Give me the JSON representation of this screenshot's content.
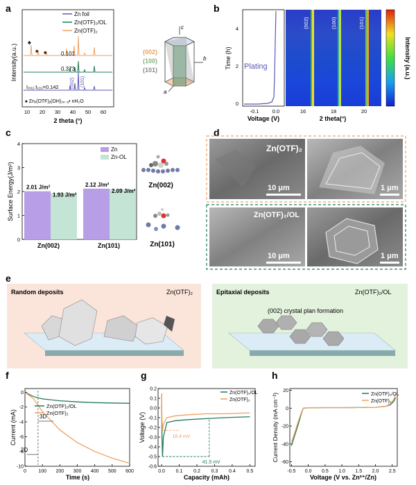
{
  "panel_labels": [
    "a",
    "b",
    "c",
    "d",
    "e",
    "f",
    "g",
    "h"
  ],
  "colors": {
    "zn": "#5b57b3",
    "ol": "#1f7a55",
    "otf": "#f0a060",
    "zn_bar": "#b79ee6",
    "ol_bar": "#c4e4d6"
  },
  "panel_a": {
    "legend": [
      "Zn foil",
      "Zn(OTF)₂/OL",
      "Zn(OTF)₂"
    ],
    "ratios": [
      "0.101",
      "0.373",
      "I₀₀₂:I₁₀₁=0.142"
    ],
    "peak_labels": [
      "(002)",
      "(101)"
    ],
    "footnote": "♠ Znₓ(OTF)ᵧ(OH)₂ₓ₋ᵧ• nH₂O",
    "xlabel": "2 theta (°)",
    "ylabel": "Intensity(a.u.)",
    "xticks": [
      "10",
      "20",
      "30",
      "40",
      "50",
      "60"
    ],
    "crystal_planes": [
      "(002)",
      "(100)",
      "(101)"
    ],
    "axes": [
      "c",
      "b",
      "a"
    ]
  },
  "panel_b": {
    "plating_label": "Plating",
    "ylabel": "Time (h)",
    "yticks": [
      "0",
      "2",
      "4"
    ],
    "xlabel_left": "Voltage (V)",
    "xticks_left": [
      "-0.1",
      "0.0"
    ],
    "xlabel_right": "2 theta(°)",
    "xticks_right": [
      "16",
      "18",
      "20"
    ],
    "stripe_labels": [
      "(002)",
      "(100)",
      "(101)"
    ],
    "colorbar_label": "Intensity (a.u.)"
  },
  "panel_c": {
    "ylabel": "Surface Energy(J/m²)",
    "yticks": [
      "0",
      "1",
      "2",
      "3",
      "4"
    ],
    "legend": [
      "Zn",
      "Zn-OL"
    ],
    "categories": [
      "Zn(002)",
      "Zn(101)"
    ],
    "value_labels": [
      "2.01 J/m²",
      "1.93 J/m²",
      "2.12 J/m²",
      "2.09 J/m²"
    ],
    "model_labels": [
      "Zn(002)",
      "Zn(101)"
    ]
  },
  "panel_d": {
    "top_title": "Zn(OTF)₂",
    "bottom_title": "Zn(OTF)₂/OL",
    "scale_left": "10 μm",
    "scale_right": "1 μm"
  },
  "panel_e": {
    "left_title": "Random deposits",
    "left_tag": "Zn(OTF)₂",
    "right_title": "Epitaxial deposits",
    "right_tag": "Zn(OTF)₂/OL",
    "right_caption": "(002) crystal plan formation"
  },
  "panel_f": {
    "legend": [
      "Zn(OTF)₂/OL",
      "Zn(OTF)₂"
    ],
    "annotations": [
      "3D",
      "2D"
    ],
    "xlabel": "Time (s)",
    "ylabel": "Current (mA)",
    "xticks": [
      "0",
      "100",
      "200",
      "300",
      "400",
      "500",
      "600"
    ],
    "yticks": [
      "0",
      "-2",
      "-4",
      "-6",
      "-8",
      "-10"
    ]
  },
  "panel_g": {
    "legend": [
      "Zn(OTF)₂/OL",
      "Zn(OTF)₂"
    ],
    "annotations": [
      "16.4 mV",
      "41.5 mV"
    ],
    "xlabel": "Capacity (mAh)",
    "ylabel": "Voltage (V)",
    "xticks": [
      "0.0",
      "0.1",
      "0.2",
      "0.3",
      "0.4",
      "0.5"
    ],
    "yticks": [
      "0.2",
      "0.1",
      "0.0",
      "-0.1",
      "-0.2",
      "-0.3",
      "-0.4",
      "-0.5",
      "-0.6"
    ]
  },
  "panel_h": {
    "legend": [
      "Zn(OTF)₂/OL",
      "Zn(OTF)₂"
    ],
    "xlabel": "Voltage (V vs. Zn²⁺/Zn)",
    "ylabel": "Current Density (mA cm⁻²)",
    "xticks": [
      "-0.5",
      "0.0",
      "0.5",
      "1.0",
      "1.5",
      "2.0",
      "2.5"
    ],
    "yticks": [
      "20",
      "0",
      "-20",
      "-40",
      "-60"
    ]
  },
  "chart_data": [
    {
      "type": "bar",
      "categories": [
        "Zn(002)",
        "Zn(101)"
      ],
      "series": [
        {
          "name": "Zn",
          "values": [
            2.01,
            2.12
          ]
        },
        {
          "name": "Zn-OL",
          "values": [
            1.93,
            2.09
          ]
        }
      ],
      "ylabel": "Surface Energy(J/m²)",
      "ylim": [
        0,
        4
      ]
    },
    {
      "type": "line",
      "xlabel": "Time (s)",
      "ylabel": "Current (mA)",
      "xlim": [
        0,
        600
      ],
      "ylim": [
        -10,
        0.5
      ],
      "series": [
        {
          "name": "Zn(OTF)₂/OL",
          "x": [
            0,
            50,
            100,
            200,
            300,
            400,
            500,
            600
          ],
          "y": [
            0,
            -0.6,
            -0.9,
            -1.15,
            -1.3,
            -1.4,
            -1.45,
            -1.5
          ]
        },
        {
          "name": "Zn(OTF)₂",
          "x": [
            0,
            50,
            100,
            200,
            300,
            400,
            500,
            600
          ],
          "y": [
            0,
            -0.9,
            -2.6,
            -5.1,
            -6.8,
            -8.0,
            -8.9,
            -9.6
          ]
        }
      ]
    },
    {
      "type": "line",
      "xlabel": "Capacity (mAh)",
      "ylabel": "Voltage (V)",
      "xlim": [
        -0.02,
        0.53
      ],
      "ylim": [
        -0.6,
        0.2
      ],
      "series": [
        {
          "name": "Zn(OTF)₂/OL",
          "x": [
            0,
            0.002,
            0.005,
            0.01,
            0.03,
            0.08,
            0.15,
            0.25,
            0.35,
            0.5
          ],
          "y": [
            0.15,
            -0.3,
            -0.5,
            -0.3,
            -0.15,
            -0.13,
            -0.12,
            -0.11,
            -0.1,
            -0.09
          ]
        },
        {
          "name": "Zn(OTF)₂",
          "x": [
            0,
            0.002,
            0.005,
            0.01,
            0.03,
            0.08,
            0.15,
            0.25,
            0.35,
            0.5
          ],
          "y": [
            0.15,
            -0.1,
            -0.23,
            -0.17,
            -0.1,
            -0.08,
            -0.07,
            -0.06,
            -0.06,
            -0.05
          ]
        }
      ]
    },
    {
      "type": "line",
      "xlabel": "Voltage (V vs. Zn²⁺/Zn)",
      "ylabel": "Current Density (mA cm⁻²)",
      "xlim": [
        -0.55,
        2.65
      ],
      "ylim": [
        -65,
        22
      ],
      "series": [
        {
          "name": "Zn(OTF)₂/OL",
          "x": [
            -0.5,
            -0.4,
            -0.3,
            -0.2,
            -0.15,
            0.0,
            0.5,
            1.0,
            1.5,
            2.0,
            2.3,
            2.45,
            2.55,
            2.6
          ],
          "y": [
            -42,
            -30,
            -18,
            -5,
            0,
            0.5,
            0.6,
            0.6,
            0.7,
            1,
            2,
            4,
            8,
            12
          ]
        },
        {
          "name": "Zn(OTF)₂",
          "x": [
            -0.5,
            -0.4,
            -0.3,
            -0.2,
            -0.15,
            0.0,
            0.5,
            1.0,
            1.5,
            2.0,
            2.3,
            2.45,
            2.55,
            2.6
          ],
          "y": [
            -38,
            -27,
            -15,
            -4,
            0,
            0.5,
            0.6,
            0.6,
            0.7,
            1,
            2,
            5,
            10,
            16
          ]
        }
      ]
    }
  ]
}
